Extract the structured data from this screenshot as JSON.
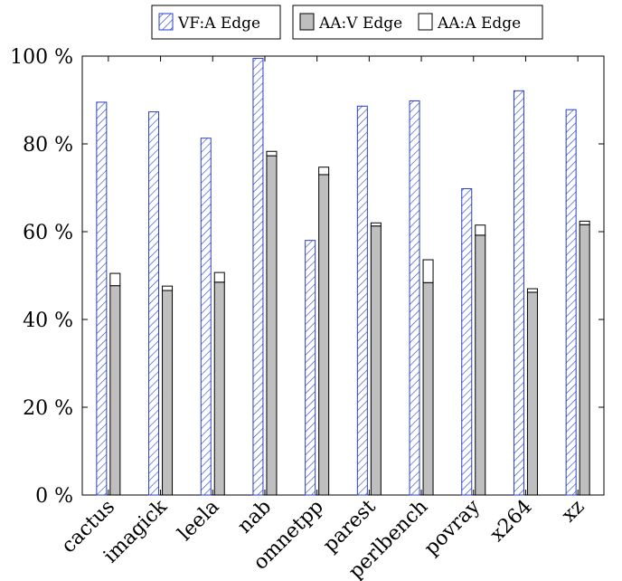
{
  "chart_data": {
    "type": "bar",
    "categories": [
      "cactus",
      "imagick",
      "leela",
      "nab",
      "omnetpp",
      "parest",
      "perlbench",
      "povray",
      "x264",
      "xz"
    ],
    "series": [
      {
        "name": "VF:A Edge",
        "values": [
          89.5,
          87.3,
          81.3,
          99.5,
          58.0,
          88.6,
          89.8,
          69.8,
          92.1,
          87.8
        ],
        "color": "#2a3fc7",
        "pattern": "diagonal-hatch"
      },
      {
        "name": "AA:V Edge",
        "values": [
          47.7,
          46.6,
          48.5,
          77.3,
          73.0,
          61.3,
          48.4,
          59.2,
          46.2,
          61.6
        ],
        "color": "#bfbfbf",
        "stack": "AA"
      },
      {
        "name": "AA:A Edge",
        "values": [
          2.8,
          1.0,
          2.2,
          1.0,
          1.7,
          0.7,
          5.2,
          2.3,
          0.8,
          0.8
        ],
        "color": "#ffffff",
        "stack": "AA"
      }
    ],
    "ylim": [
      0,
      100
    ],
    "yticks": [
      "0 %",
      "20 %",
      "40 %",
      "60 %",
      "80 %",
      "100 %"
    ],
    "ytick_values": [
      0,
      20,
      40,
      60,
      80,
      100
    ],
    "legend_position": "top-center",
    "grid": false
  }
}
